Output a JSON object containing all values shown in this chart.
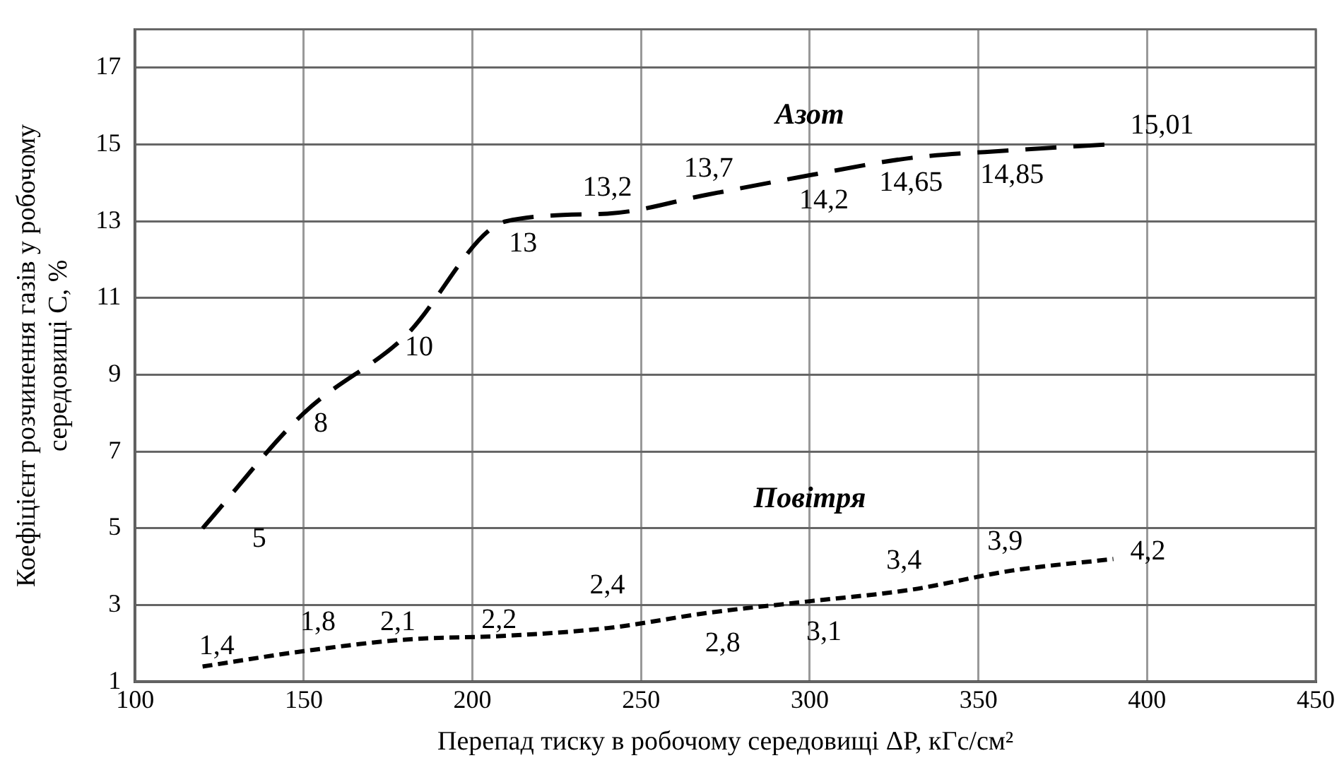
{
  "chart_data": {
    "type": "line",
    "xlabel": "Перепад тиску в робочому середовищі ΔP, кГс/см²",
    "ylabel": "Коефіцієнт розчинення газів у робочому середовищі C, %",
    "xlim": [
      100,
      450
    ],
    "xticks": [
      100,
      150,
      200,
      250,
      300,
      350,
      400,
      450
    ],
    "ylim": [
      1,
      18
    ],
    "yticks": [
      1,
      3,
      5,
      7,
      9,
      11,
      13,
      15,
      17
    ],
    "grid": true,
    "legend": false,
    "marker": "none",
    "x": [
      120,
      150,
      180,
      210,
      240,
      270,
      300,
      330,
      360,
      390
    ],
    "series": [
      {
        "name": "Азот",
        "color": "#000000",
        "line_style": "dashed",
        "values": [
          5,
          8,
          10,
          13,
          13.2,
          13.7,
          14.2,
          14.65,
          14.85,
          15.01
        ],
        "value_labels": [
          "5",
          "8",
          "10",
          "13",
          "13,2",
          "13,7",
          "14,2",
          "14,65",
          "14,85",
          "15,01"
        ]
      },
      {
        "name": "Повітря",
        "color": "#000000",
        "line_style": "dotted",
        "values": [
          1.4,
          1.8,
          2.1,
          2.2,
          2.4,
          2.8,
          3.1,
          3.4,
          3.9,
          4.2
        ],
        "value_labels": [
          "1,4",
          "1,8",
          "2,1",
          "2,2",
          "2,4",
          "2,8",
          "3,1",
          "3,4",
          "3,9",
          "4,2"
        ]
      }
    ]
  }
}
